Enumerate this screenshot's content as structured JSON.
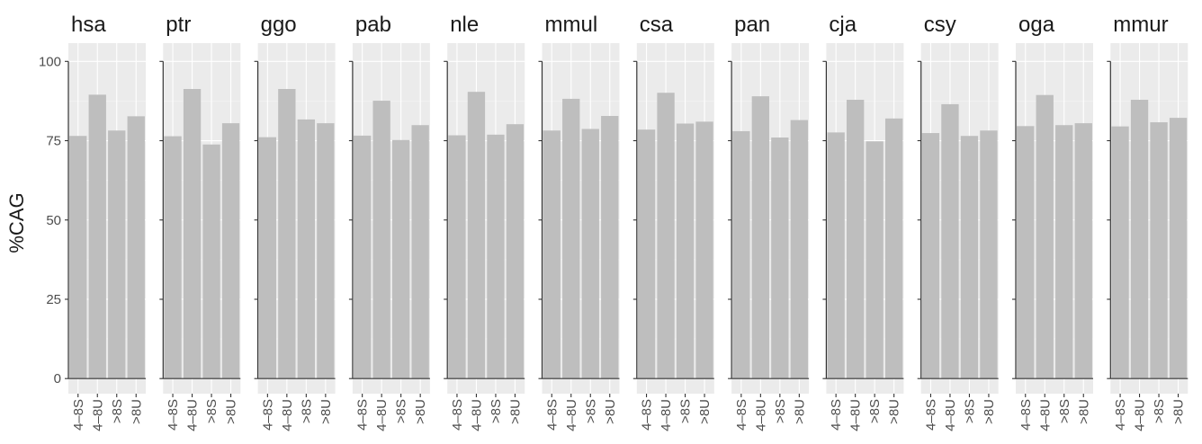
{
  "chart_data": {
    "type": "bar",
    "ylabel": "%CAG",
    "xlabel": "",
    "ylim": [
      0,
      100
    ],
    "yticks": [
      0,
      25,
      50,
      75,
      100
    ],
    "categories": [
      "4–8S",
      "4–8U",
      ">8S",
      ">8U"
    ],
    "grid": true,
    "colors": {
      "bar": "#bebebe",
      "panel": "#ebebeb",
      "grid": "#ffffff"
    },
    "panels": [
      {
        "label": "hsa",
        "values": [
          76.5,
          89.5,
          78.2,
          82.7
        ]
      },
      {
        "label": "ptr",
        "values": [
          76.4,
          91.3,
          73.8,
          80.5
        ]
      },
      {
        "label": "ggo",
        "values": [
          76.1,
          91.3,
          81.7,
          80.5
        ]
      },
      {
        "label": "pab",
        "values": [
          76.6,
          87.6,
          75.2,
          79.9
        ]
      },
      {
        "label": "nle",
        "values": [
          76.7,
          90.4,
          76.9,
          80.2
        ]
      },
      {
        "label": "mmul",
        "values": [
          78.2,
          88.2,
          78.7,
          82.8
        ]
      },
      {
        "label": "csa",
        "values": [
          78.5,
          90.1,
          80.4,
          81.0
        ]
      },
      {
        "label": "pan",
        "values": [
          78.0,
          89.0,
          76.0,
          81.5
        ]
      },
      {
        "label": "cja",
        "values": [
          77.6,
          87.9,
          74.8,
          82.0
        ]
      },
      {
        "label": "csy",
        "values": [
          77.4,
          86.5,
          76.5,
          78.2
        ]
      },
      {
        "label": "oga",
        "values": [
          79.6,
          89.4,
          79.9,
          80.5
        ]
      },
      {
        "label": "mmur",
        "values": [
          79.5,
          87.9,
          80.8,
          82.2
        ]
      }
    ]
  }
}
